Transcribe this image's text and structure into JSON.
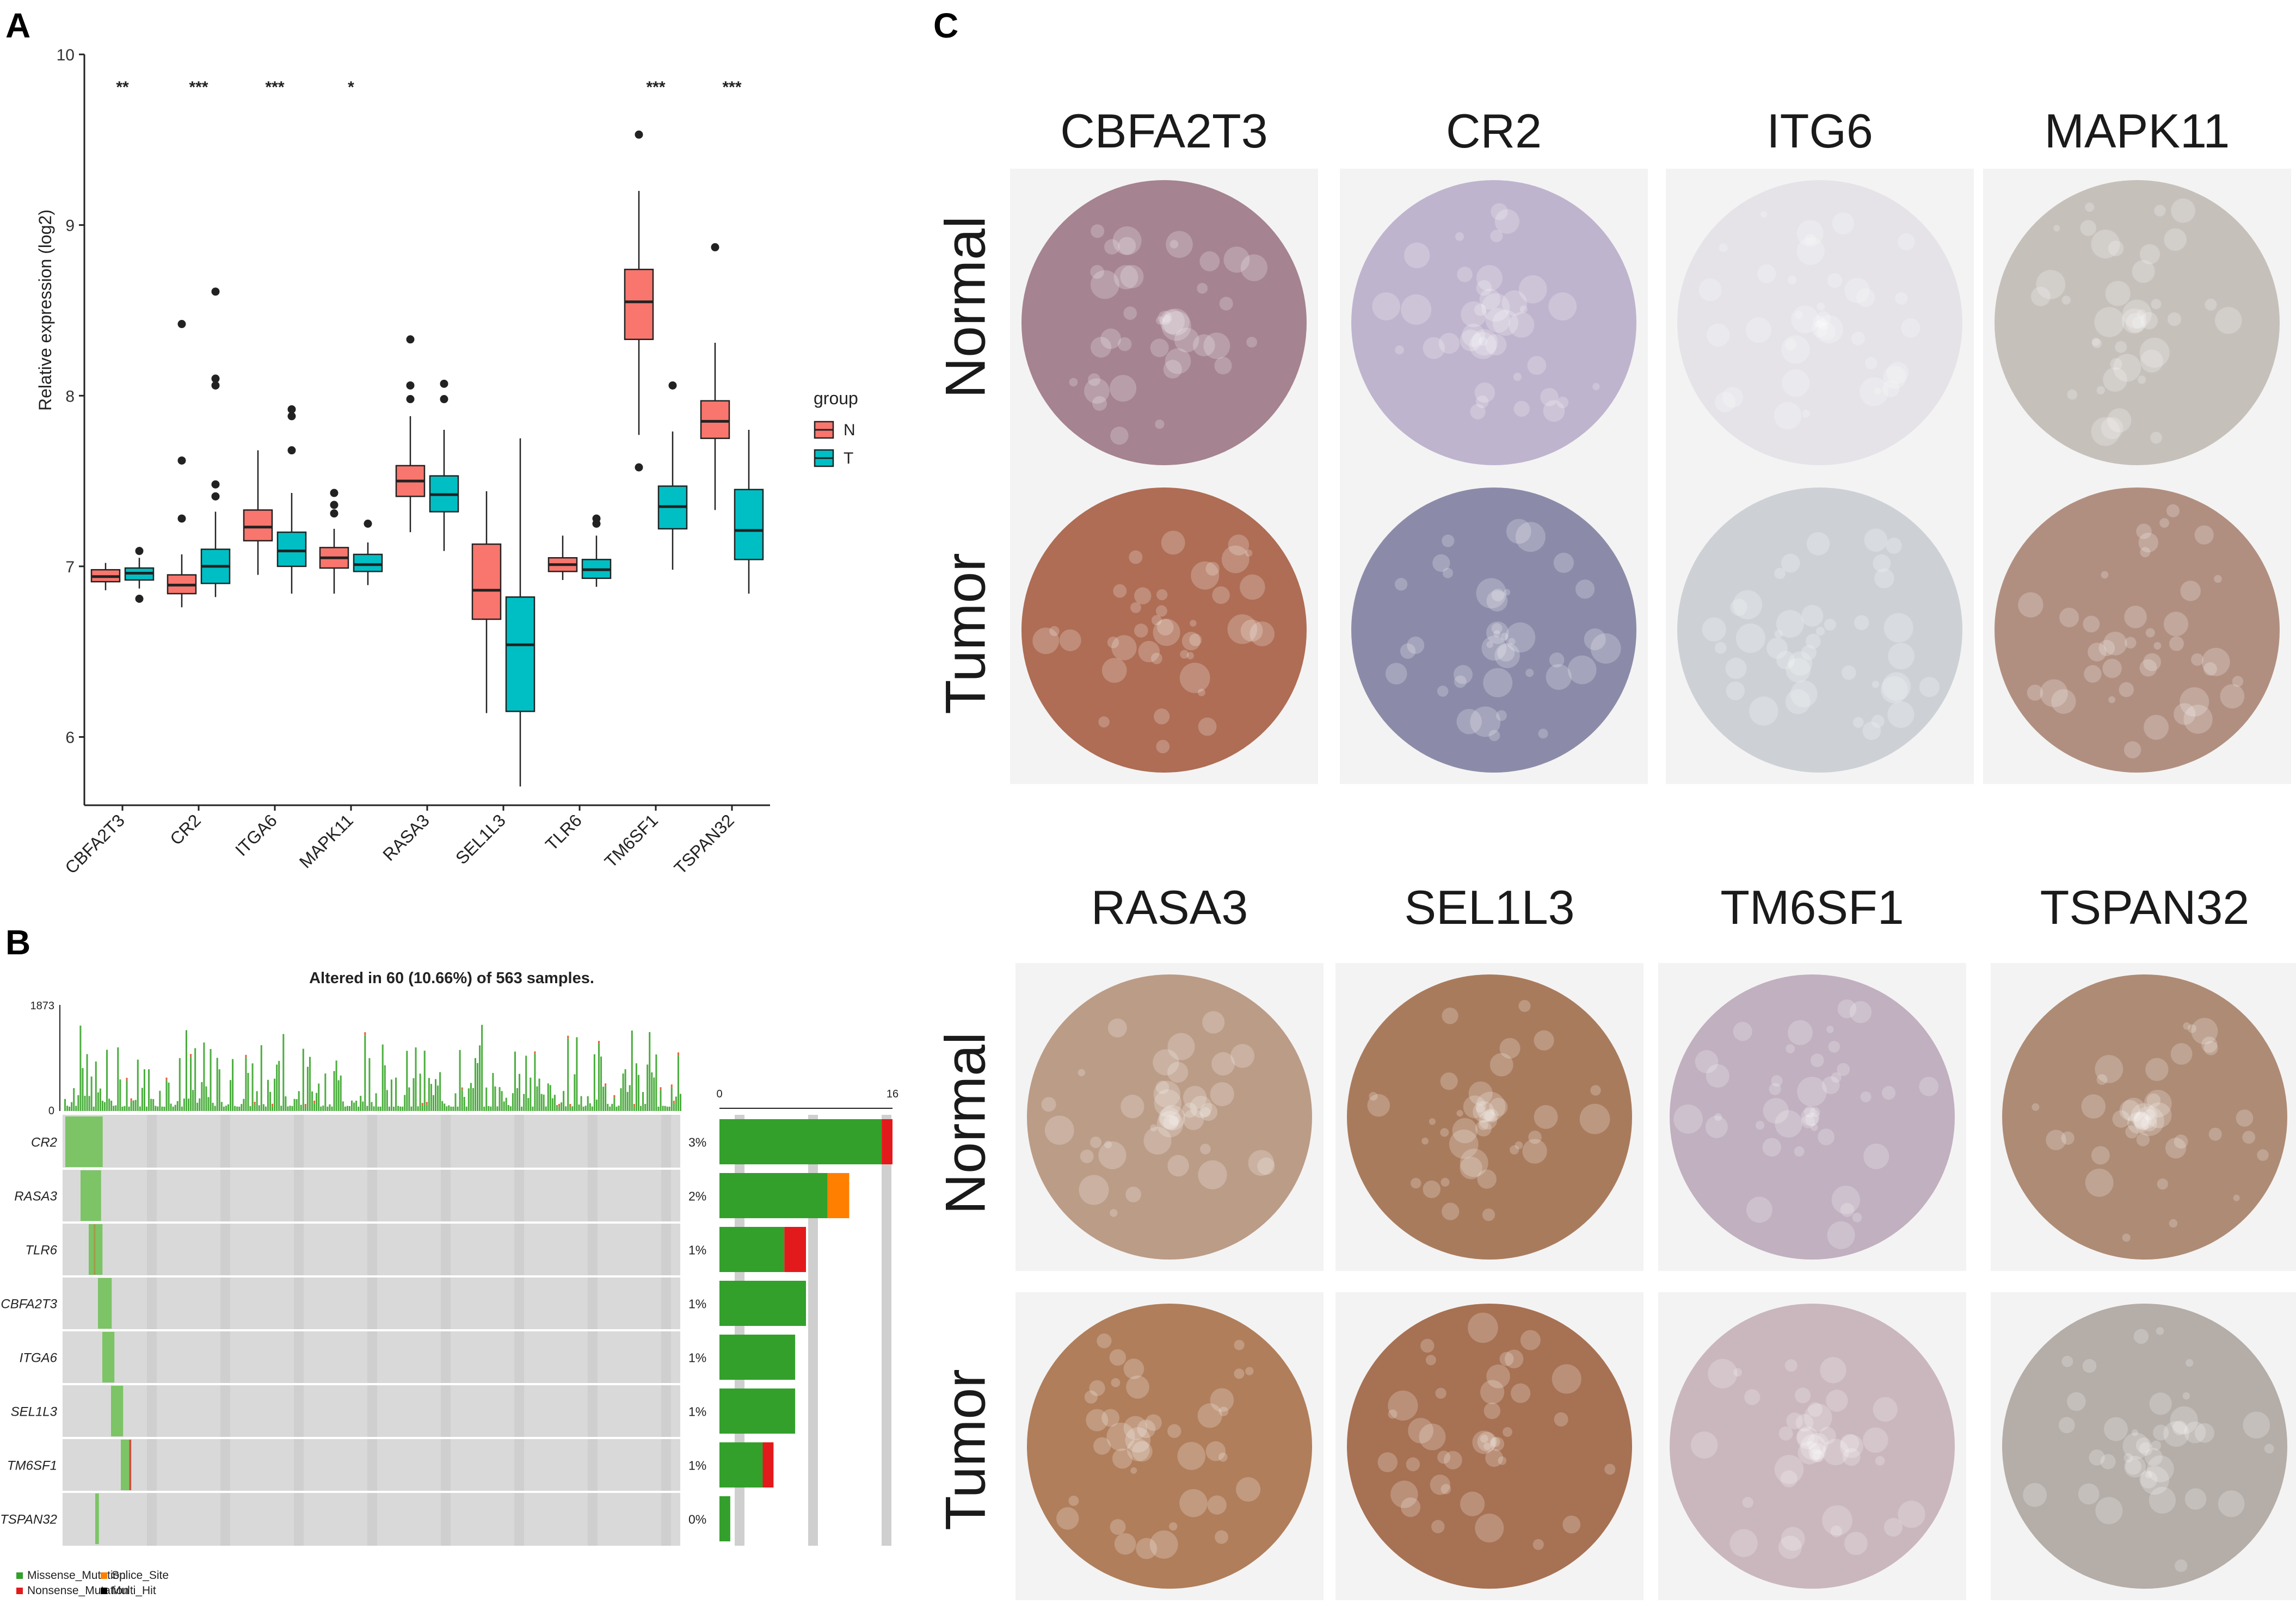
{
  "panels": {
    "a": "A",
    "b": "B",
    "c": "C"
  },
  "chart_data": [
    {
      "type": "box",
      "title": "",
      "ylabel": "Relative expression (log2)",
      "ylim": [
        5.6,
        10
      ],
      "yticks": [
        6,
        7,
        8,
        9,
        10
      ],
      "categories": [
        "CBFA2T3",
        "CR2",
        "ITGA6",
        "MAPK11",
        "RASA3",
        "SEL1L3",
        "TLR6",
        "TM6SF1",
        "TSPAN32"
      ],
      "significance": [
        "**",
        "***",
        "***",
        "*",
        "",
        "",
        "",
        "***",
        "***"
      ],
      "legend": {
        "title": "group",
        "position": "right",
        "items": [
          {
            "name": "N",
            "color": "#F8766D"
          },
          {
            "name": "T",
            "color": "#00BFC4"
          }
        ]
      },
      "series": [
        {
          "name": "N",
          "color": "#F8766D",
          "boxes": [
            {
              "whislo": 6.86,
              "q1": 6.91,
              "med": 6.94,
              "q3": 6.98,
              "whishi": 7.02,
              "fliers": []
            },
            {
              "whislo": 6.76,
              "q1": 6.84,
              "med": 6.89,
              "q3": 6.95,
              "whishi": 7.07,
              "fliers": [
                7.28,
                7.62,
                8.42
              ]
            },
            {
              "whislo": 6.95,
              "q1": 7.15,
              "med": 7.23,
              "q3": 7.33,
              "whishi": 7.68,
              "fliers": []
            },
            {
              "whislo": 6.84,
              "q1": 6.99,
              "med": 7.05,
              "q3": 7.11,
              "whishi": 7.22,
              "fliers": [
                7.31,
                7.36,
                7.43
              ]
            },
            {
              "whislo": 7.2,
              "q1": 7.41,
              "med": 7.5,
              "q3": 7.59,
              "whishi": 7.88,
              "fliers": [
                7.98,
                8.06,
                8.33
              ]
            },
            {
              "whislo": 6.14,
              "q1": 6.69,
              "med": 6.86,
              "q3": 7.13,
              "whishi": 7.44,
              "fliers": []
            },
            {
              "whislo": 6.92,
              "q1": 6.97,
              "med": 7.01,
              "q3": 7.05,
              "whishi": 7.18,
              "fliers": []
            },
            {
              "whislo": 7.77,
              "q1": 8.33,
              "med": 8.55,
              "q3": 8.74,
              "whishi": 9.2,
              "fliers": [
                7.58,
                9.53
              ]
            },
            {
              "whislo": 7.33,
              "q1": 7.75,
              "med": 7.85,
              "q3": 7.97,
              "whishi": 8.31,
              "fliers": [
                8.87
              ]
            }
          ]
        },
        {
          "name": "T",
          "color": "#00BFC4",
          "boxes": [
            {
              "whislo": 6.87,
              "q1": 6.92,
              "med": 6.96,
              "q3": 6.99,
              "whishi": 7.05,
              "fliers": [
                6.81,
                7.09
              ]
            },
            {
              "whislo": 6.82,
              "q1": 6.9,
              "med": 7.0,
              "q3": 7.1,
              "whishi": 7.32,
              "fliers": [
                7.41,
                7.48,
                8.06,
                8.1,
                8.61
              ]
            },
            {
              "whislo": 6.84,
              "q1": 7.0,
              "med": 7.09,
              "q3": 7.2,
              "whishi": 7.43,
              "fliers": [
                7.68,
                7.88,
                7.92
              ]
            },
            {
              "whislo": 6.89,
              "q1": 6.97,
              "med": 7.01,
              "q3": 7.07,
              "whishi": 7.14,
              "fliers": [
                7.25
              ]
            },
            {
              "whislo": 7.09,
              "q1": 7.32,
              "med": 7.42,
              "q3": 7.53,
              "whishi": 7.8,
              "fliers": [
                7.98,
                8.07
              ]
            },
            {
              "whislo": 5.71,
              "q1": 6.15,
              "med": 6.54,
              "q3": 6.82,
              "whishi": 7.75,
              "fliers": []
            },
            {
              "whislo": 6.88,
              "q1": 6.93,
              "med": 6.98,
              "q3": 7.04,
              "whishi": 7.18,
              "fliers": [
                7.25,
                7.28
              ]
            },
            {
              "whislo": 6.98,
              "q1": 7.22,
              "med": 7.35,
              "q3": 7.47,
              "whishi": 7.79,
              "fliers": [
                8.06
              ]
            },
            {
              "whislo": 6.84,
              "q1": 7.04,
              "med": 7.21,
              "q3": 7.45,
              "whishi": 7.8,
              "fliers": []
            }
          ]
        }
      ]
    },
    {
      "type": "bar",
      "title": "Altered in 60 (10.66%) of 563 samples.",
      "top_ymax": "1873",
      "top_ymin": "0",
      "right_axis": {
        "min": "0",
        "max": "16"
      },
      "genes": [
        "CR2",
        "RASA3",
        "TLR6",
        "CBFA2T3",
        "ITGA6",
        "SEL1L3",
        "TM6SF1",
        "TSPAN32"
      ],
      "percents": [
        "3%",
        "2%",
        "1%",
        "1%",
        "1%",
        "1%",
        "1%",
        "0%"
      ],
      "counts": [
        {
          "missense": 15,
          "splice": 0,
          "nonsense": 1
        },
        {
          "missense": 10,
          "splice": 2,
          "nonsense": 0
        },
        {
          "missense": 6,
          "splice": 0,
          "nonsense": 2
        },
        {
          "missense": 8,
          "splice": 0,
          "nonsense": 0
        },
        {
          "missense": 7,
          "splice": 0,
          "nonsense": 0
        },
        {
          "missense": 7,
          "splice": 0,
          "nonsense": 0
        },
        {
          "missense": 4,
          "splice": 0,
          "nonsense": 1
        },
        {
          "missense": 1,
          "splice": 0,
          "nonsense": 0
        }
      ],
      "legend": [
        {
          "name": "Missense_Mutation",
          "color": "#33A02C"
        },
        {
          "name": "Splice_Site",
          "color": "#FF7F00"
        },
        {
          "name": "Nonsense_Mutation",
          "color": "#E31A1C"
        },
        {
          "name": "Multi_Hit",
          "color": "#000000"
        }
      ]
    }
  ],
  "ihc": {
    "row_labels": {
      "normal": "Normal",
      "tumor": "Tumor"
    },
    "top_genes": [
      "CBFA2T3",
      "CR2",
      "ITG6",
      "MAPK11"
    ],
    "bottom_genes": [
      "RASA3",
      "SEL1L3",
      "TM6SF1",
      "TSPAN32"
    ],
    "normal_top_colors": [
      "#9a7382",
      "#b7abc8",
      "#e2e0e6",
      "#bfb8b3"
    ],
    "tumor_top_colors": [
      "#a45a3e",
      "#7c7c9e",
      "#c7ccd1",
      "#a7816f"
    ],
    "normal_bottom_colors": [
      "#b38f78",
      "#9e6a48",
      "#b9a6b8",
      "#a47c63"
    ],
    "tumor_bottom_colors": [
      "#a66d46",
      "#9c5e3c",
      "#c4aeb6",
      "#aba39d"
    ]
  }
}
